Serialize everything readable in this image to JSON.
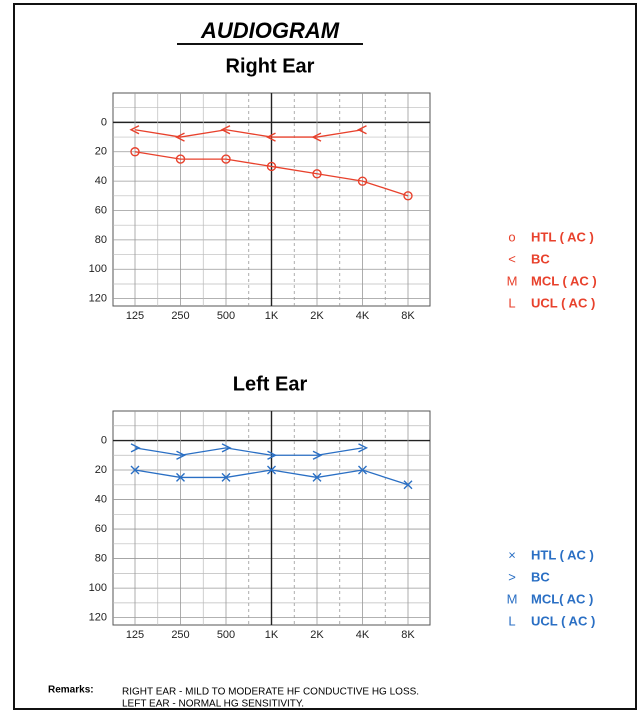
{
  "title": "AUDIOGRAM",
  "chart_data": [
    {
      "type": "line",
      "title": "Right Ear",
      "categories": [
        "125",
        "250",
        "500",
        "1K",
        "2K",
        "4K",
        "8K"
      ],
      "ylim": [
        -20,
        125
      ],
      "yticks": [
        0,
        20,
        40,
        60,
        80,
        100,
        120
      ],
      "inverted": true,
      "grid": true,
      "series": [
        {
          "name": "HTL ( AC )",
          "color": "#e8412c",
          "marker": "circle",
          "values": [
            20,
            25,
            25,
            30,
            35,
            40,
            50
          ]
        },
        {
          "name": "BC",
          "color": "#e8412c",
          "marker": "<",
          "values": [
            5,
            10,
            5,
            10,
            10,
            5,
            null
          ]
        }
      ],
      "legend": [
        {
          "symbol": "o",
          "label": "HTL ( AC )"
        },
        {
          "symbol": "<",
          "label": "BC"
        },
        {
          "symbol": "M",
          "label": "MCL ( AC )"
        },
        {
          "symbol": "L",
          "label": "UCL ( AC )"
        }
      ],
      "legend_color": "#e8412c"
    },
    {
      "type": "line",
      "title": "Left Ear",
      "categories": [
        "125",
        "250",
        "500",
        "1K",
        "2K",
        "4K",
        "8K"
      ],
      "ylim": [
        -20,
        125
      ],
      "yticks": [
        0,
        20,
        40,
        60,
        80,
        100,
        120
      ],
      "inverted": true,
      "grid": true,
      "series": [
        {
          "name": "HTL ( AC )",
          "color": "#2a6fc4",
          "marker": "x",
          "values": [
            20,
            25,
            25,
            20,
            25,
            20,
            30
          ]
        },
        {
          "name": "BC",
          "color": "#2a6fc4",
          "marker": ">",
          "values": [
            5,
            10,
            5,
            10,
            10,
            5,
            null
          ]
        }
      ],
      "legend": [
        {
          "symbol": "×",
          "label": "HTL ( AC )"
        },
        {
          "symbol": ">",
          "label": "BC"
        },
        {
          "symbol": "M",
          "label": "MCL( AC )"
        },
        {
          "symbol": "L",
          "label": "UCL ( AC )"
        }
      ],
      "legend_color": "#2a6fc4"
    }
  ],
  "remarks": {
    "label": "Remarks:",
    "lines": [
      "RIGHT EAR - MILD TO MODERATE HF CONDUCTIVE HG LOSS.",
      "LEFT EAR   -  NORMAL HG SENSITIVITY."
    ]
  }
}
